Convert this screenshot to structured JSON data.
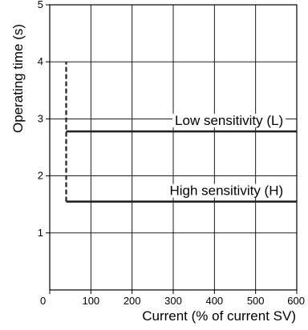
{
  "chart_data": {
    "type": "line",
    "title": "",
    "xlabel": "Current (% of current SV)",
    "ylabel": "Operating time (s)",
    "xlim": [
      0,
      600
    ],
    "ylim": [
      0,
      5
    ],
    "x_ticks": [
      0,
      100,
      200,
      300,
      400,
      500,
      600
    ],
    "y_ticks": [
      1,
      2,
      3,
      4,
      5
    ],
    "x_tick_labels": [
      "0",
      "100",
      "200",
      "300",
      "400",
      "500",
      "600"
    ],
    "y_tick_labels": [
      "1",
      "2",
      "3",
      "4",
      "5"
    ],
    "grid": true,
    "series": [
      {
        "name": "Low sensitivity (L)",
        "style": "solid",
        "x": [
          40,
          600
        ],
        "y": [
          2.78,
          2.78
        ]
      },
      {
        "name": "High sensitivity (H)",
        "style": "solid",
        "x": [
          40,
          600
        ],
        "y": [
          1.55,
          1.55
        ]
      },
      {
        "name": "",
        "style": "dashed",
        "x": [
          40,
          40
        ],
        "y": [
          1.55,
          4.0
        ]
      }
    ],
    "annotations": [
      {
        "text": "Low sensitivity (L)",
        "x": 575,
        "y": 2.78
      },
      {
        "text": "High sensitivity (H)",
        "x": 575,
        "y": 1.55
      }
    ],
    "colors": {
      "line": "#222222",
      "grid": "#000000",
      "text": "#000000"
    }
  }
}
